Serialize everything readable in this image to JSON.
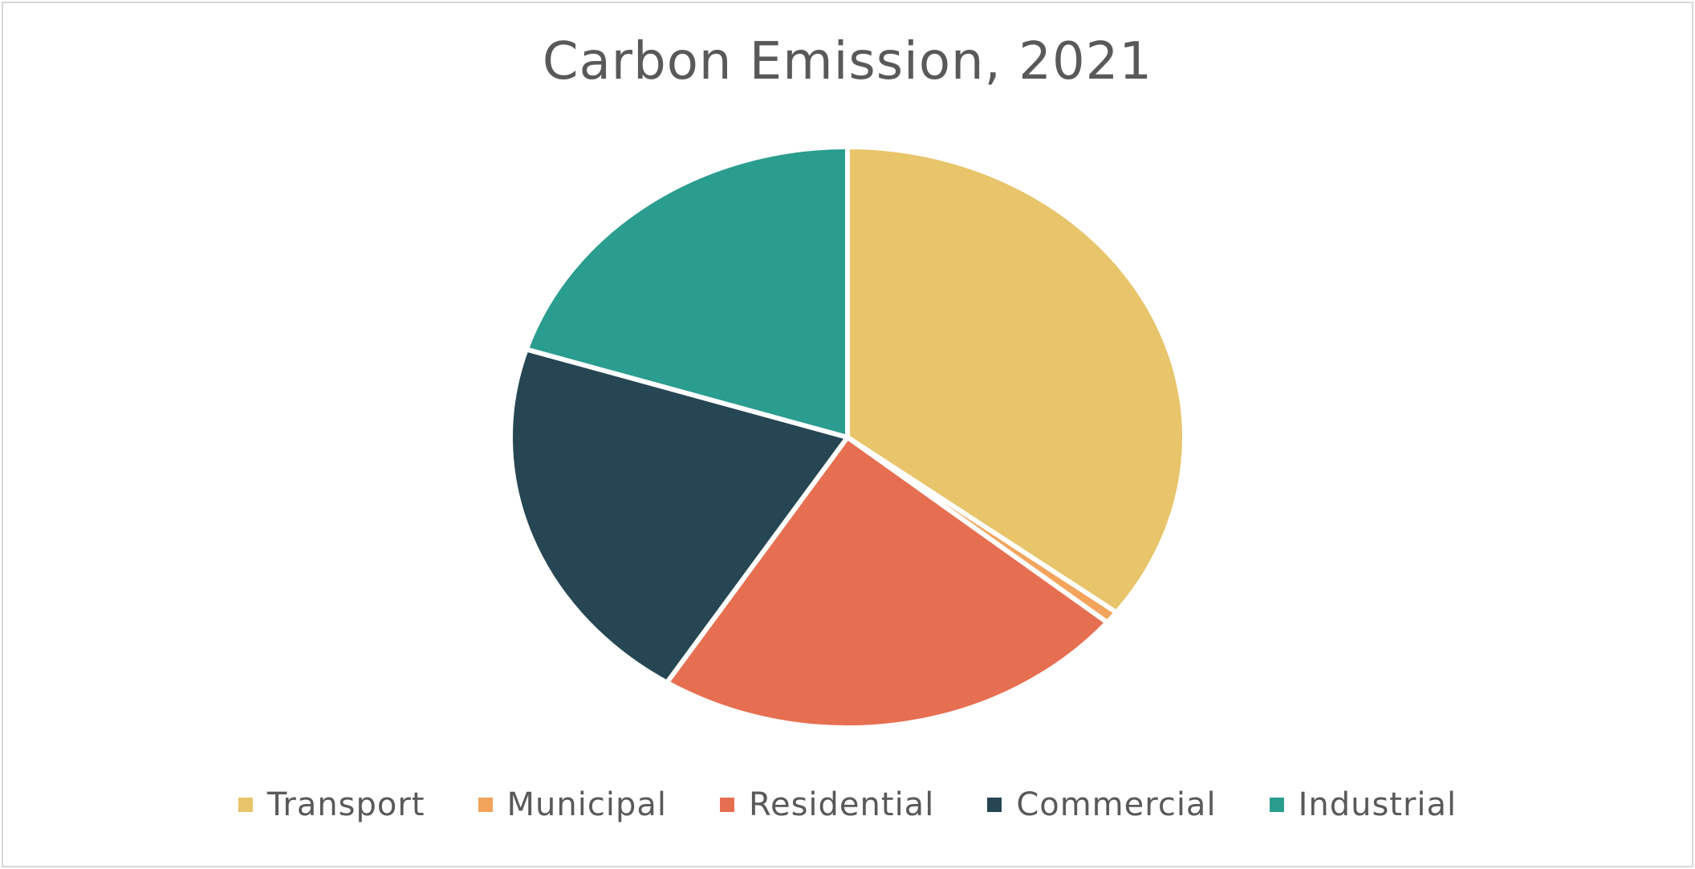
{
  "chart_data": {
    "type": "pie",
    "title": "Carbon Emission, 2021",
    "categories": [
      "Transport",
      "Municipal",
      "Residential",
      "Commercial",
      "Industrial"
    ],
    "values": [
      35.3,
      0.7,
      23.0,
      20.9,
      20.1
    ],
    "colors": [
      "#e8c46a",
      "#f3a45c",
      "#e76f51",
      "#264653",
      "#2a9d8f"
    ],
    "legend_position": "bottom",
    "start_angle_deg": 0,
    "direction": "clockwise"
  }
}
